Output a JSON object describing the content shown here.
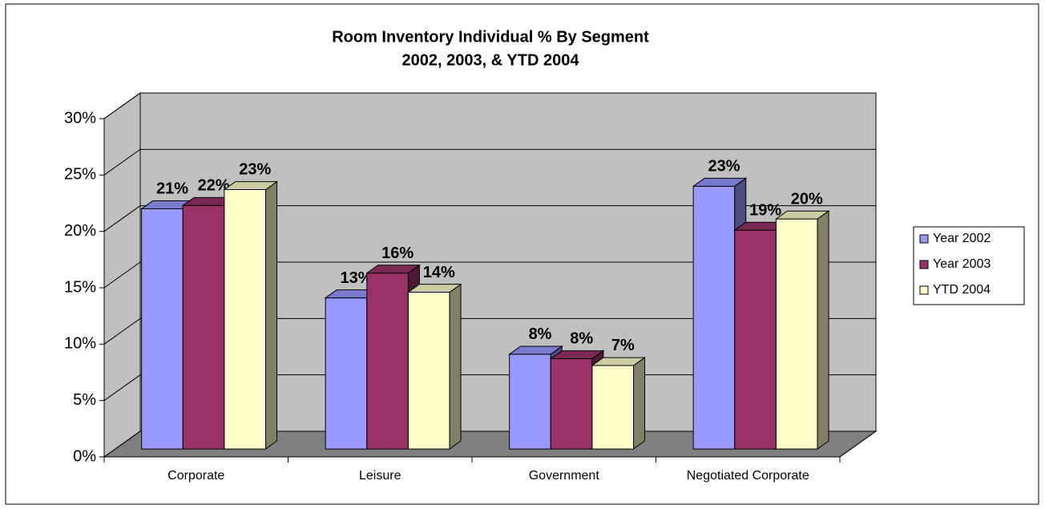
{
  "chart_data": {
    "type": "bar3d",
    "title": "Room Inventory Individual % By Segment",
    "subtitle": "2002, 2003, & YTD 2004",
    "categories": [
      "Corporate",
      "Leisure",
      "Government",
      "Negotiated Corporate"
    ],
    "series": [
      {
        "name": "Year 2002",
        "color": "#9999ff",
        "values": [
          21.3,
          13.4,
          8.4,
          23.3
        ],
        "value_labels": [
          "21%",
          "13%",
          "8%",
          "23%"
        ]
      },
      {
        "name": "Year 2003",
        "color": "#993366",
        "values": [
          21.6,
          15.6,
          8.0,
          19.4
        ],
        "value_labels": [
          "22%",
          "16%",
          "8%",
          "19%"
        ]
      },
      {
        "name": "YTD 2004",
        "color": "#ffffcc",
        "values": [
          23.0,
          13.9,
          7.4,
          20.4
        ],
        "value_labels": [
          "23%",
          "14%",
          "7%",
          "20%"
        ]
      }
    ],
    "ylim": [
      0,
      30
    ],
    "yticks": [
      {
        "value": 0,
        "label": "0%"
      },
      {
        "value": 5,
        "label": "5%"
      },
      {
        "value": 10,
        "label": "10%"
      },
      {
        "value": 15,
        "label": "15%"
      },
      {
        "value": 20,
        "label": "20%"
      },
      {
        "value": 25,
        "label": "25%"
      },
      {
        "value": 30,
        "label": "30%"
      }
    ],
    "grid": true,
    "legend": "right",
    "wall_color": "#c0c0c0",
    "floor_color": "#808080"
  }
}
